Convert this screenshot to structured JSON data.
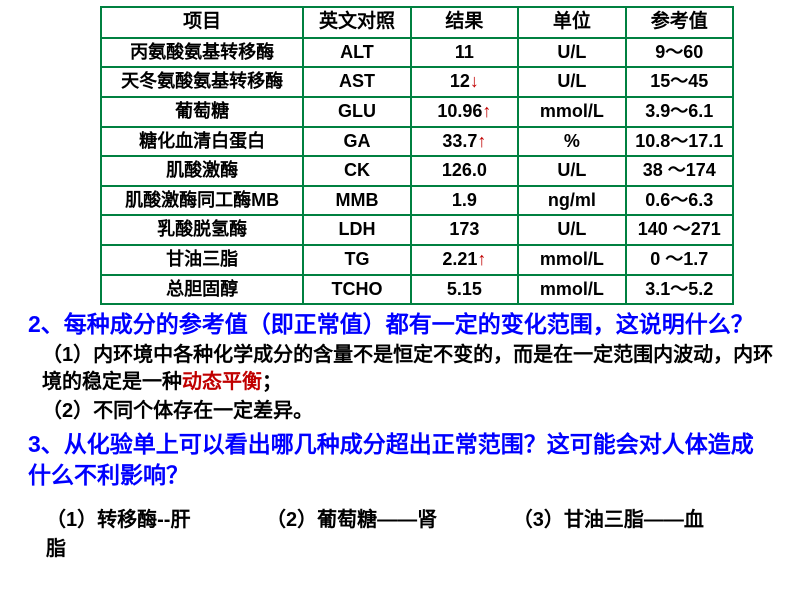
{
  "table": {
    "headers": [
      "项目",
      "英文对照",
      "结果",
      "单位",
      "参考值"
    ],
    "col_widths": [
      "32%",
      "17%",
      "17%",
      "17%",
      "17%"
    ],
    "border_color": "#008040",
    "arrow_color": "#c00000",
    "rows": [
      {
        "name": "丙氨酸氨基转移酶",
        "en": "ALT",
        "result": "11",
        "arrow": "",
        "unit": "U/L",
        "ref": "9〜60"
      },
      {
        "name": "天冬氨酸氨基转移酶",
        "en": "AST",
        "result": "12",
        "arrow": "↓",
        "unit": "U/L",
        "ref": "15〜45"
      },
      {
        "name": "葡萄糖",
        "en": "GLU",
        "result": "10.96",
        "arrow": "↑",
        "unit": "mmol/L",
        "ref": "3.9〜6.1"
      },
      {
        "name": "糖化血清白蛋白",
        "en": "GA",
        "result": "33.7",
        "arrow": "↑",
        "unit": "%",
        "ref": "10.8〜17.1"
      },
      {
        "name": "肌酸激酶",
        "en": "CK",
        "result": "126.0",
        "arrow": "",
        "unit": "U/L",
        "ref": "38 〜174"
      },
      {
        "name": "肌酸激酶同工酶MB",
        "en": "MMB",
        "result": "1.9",
        "arrow": "",
        "unit": "ng/ml",
        "ref": "0.6〜6.3"
      },
      {
        "name": "乳酸脱氢酶",
        "en": "LDH",
        "result": "173",
        "arrow": "",
        "unit": "U/L",
        "ref": "140 〜271"
      },
      {
        "name": "甘油三脂",
        "en": "TG",
        "result": "2.21",
        "arrow": "↑",
        "unit": "mmol/L",
        "ref": "0 〜1.7"
      },
      {
        "name": "总胆固醇",
        "en": "TCHO",
        "result": "5.15",
        "arrow": "",
        "unit": "mmol/L",
        "ref": "3.1〜5.2"
      }
    ]
  },
  "q2": {
    "question": "2、每种成分的参考值（即正常值）都有一定的变化范围，这说明什么？",
    "answer1_pre": "（1）内环境中各种化学成分的含量不是恒定不变的，而是在一定范围内波动，内环境的稳定是一种",
    "answer1_red": "动态平衡",
    "answer1_post": "；",
    "answer2": "（2）不同个体存在一定差异。"
  },
  "q3": {
    "question": "3、从化验单上可以看出哪几种成分超出正常范围？这可能会对人体造成什么不利影响？",
    "a": "（1）转移酶--肝",
    "b": "（2）葡萄糖——肾",
    "c": "（3）甘油三脂——血脂"
  },
  "colors": {
    "question": "#0000ff",
    "emphasis": "#c00000",
    "text": "#000000",
    "background": "#ffffff"
  }
}
